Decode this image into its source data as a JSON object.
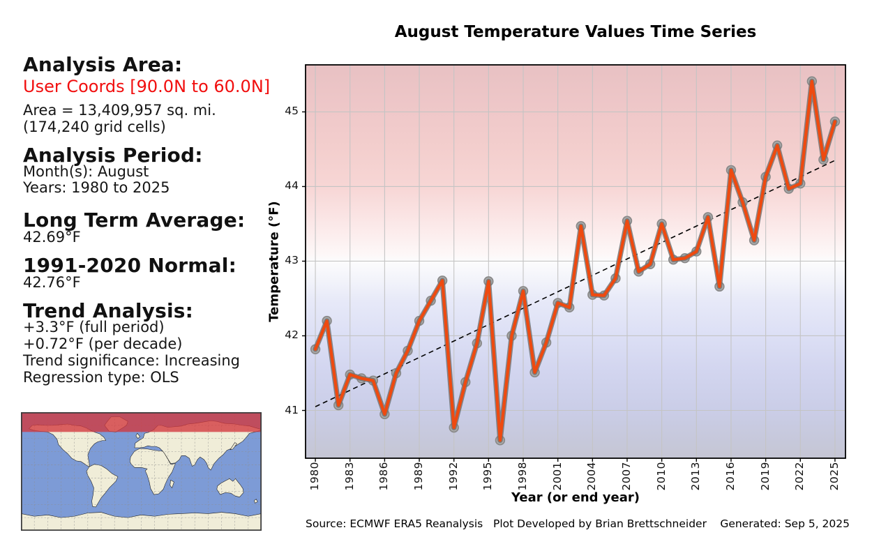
{
  "sidebar": {
    "analysis_area_heading": "Analysis Area:",
    "analysis_area_value": "User Coords [90.0N to 60.0N]",
    "area_line1": "Area = 13,409,957 sq. mi.",
    "area_line2": "(174,240 grid cells)",
    "analysis_period_heading": "Analysis Period:",
    "months_line": "Month(s): August",
    "years_line": "Years: 1980 to 2025",
    "long_term_avg_heading": "Long Term Average:",
    "long_term_avg_value": "42.69°F",
    "normal_heading": "1991-2020 Normal:",
    "normal_value": "42.76°F",
    "trend_heading": "Trend Analysis:",
    "trend_full_period": "+3.3°F (full period)",
    "trend_per_decade": "+0.72°F (per decade)",
    "trend_significance": "Trend significance: Increasing",
    "regression_type": "Regression type: OLS"
  },
  "footer": {
    "source": "Source: ECMWF ERA5 Reanalysis",
    "credit": "Plot Developed by Brian Brettschneider",
    "generated": "Generated: Sep 5, 2025"
  },
  "colors": {
    "accent_red_text": "#f10e0e",
    "series_line": "#ee4a10",
    "series_outline": "#6e6e6e",
    "marker_fill": "#ababab",
    "marker_edge": "#8a8a8a",
    "trend_line": "#000000",
    "gridline": "#c4c4c4",
    "map_ocean": "#7d9bd6",
    "map_land": "#f0edd8",
    "map_band_overlay": "rgba(210,55,60,0.78)"
  },
  "chart_data": {
    "type": "line",
    "title": "August Temperature Values Time Series",
    "xlabel": "Year (or end year)",
    "ylabel": "Temperature (°F)",
    "x_ticks": [
      1980,
      1983,
      1986,
      1989,
      1992,
      1995,
      1998,
      2001,
      2004,
      2007,
      2010,
      2013,
      2016,
      2019,
      2022,
      2025
    ],
    "y_ticks": [
      41,
      42,
      43,
      44,
      45
    ],
    "xlim": [
      1979.15,
      2025.91
    ],
    "ylim": [
      40.36,
      45.63
    ],
    "grid": true,
    "legend": "none",
    "years": [
      1980,
      1981,
      1982,
      1983,
      1984,
      1985,
      1986,
      1987,
      1988,
      1989,
      1990,
      1991,
      1992,
      1993,
      1994,
      1995,
      1996,
      1997,
      1998,
      1999,
      2000,
      2001,
      2002,
      2003,
      2004,
      2005,
      2006,
      2007,
      2008,
      2009,
      2010,
      2011,
      2012,
      2013,
      2014,
      2015,
      2016,
      2017,
      2018,
      2019,
      2020,
      2021,
      2022,
      2023,
      2024,
      2025
    ],
    "values": [
      41.82,
      42.2,
      41.07,
      41.48,
      41.43,
      41.4,
      40.95,
      41.5,
      41.8,
      42.2,
      42.47,
      42.74,
      40.77,
      41.38,
      41.9,
      42.73,
      40.6,
      42.0,
      42.6,
      41.51,
      41.91,
      42.44,
      42.38,
      43.47,
      42.55,
      42.54,
      42.77,
      43.54,
      42.86,
      42.96,
      43.5,
      43.02,
      43.04,
      43.13,
      43.59,
      42.66,
      44.22,
      43.79,
      43.28,
      44.13,
      44.55,
      43.97,
      44.04,
      45.41,
      44.36,
      44.87
    ],
    "trend_line": {
      "x": [
        1980,
        2025
      ],
      "y": [
        41.05,
        44.35
      ],
      "style": "dashed"
    },
    "background_gradient": [
      [
        0,
        "#e8c1c3"
      ],
      [
        12,
        "#efc8c9"
      ],
      [
        21,
        "#f3cecd"
      ],
      [
        31,
        "#f7d6d5"
      ],
      [
        40,
        "#fbe7e7"
      ],
      [
        48,
        "#fdf7f7"
      ],
      [
        50,
        "#fcfcfd"
      ],
      [
        55,
        "#f2f3fa"
      ],
      [
        60,
        "#e7e9f8"
      ],
      [
        69,
        "#dcdff5"
      ],
      [
        78,
        "#d2d5ef"
      ],
      [
        88,
        "#cacde7"
      ],
      [
        94,
        "#c7c9dd"
      ],
      [
        100,
        "#c5c6d4"
      ]
    ]
  }
}
